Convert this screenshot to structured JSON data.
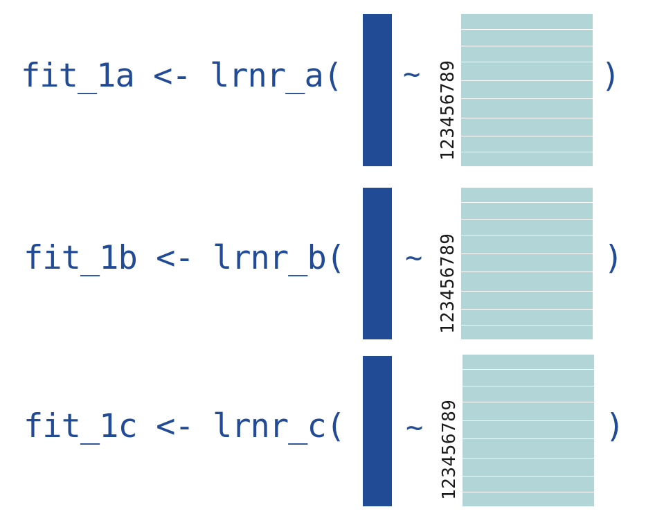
{
  "colors": {
    "code": "#224b96",
    "outcome_bar": "#224b96",
    "features": "#b2d6d7",
    "label": "#1a1a1a"
  },
  "rows": [
    {
      "code": "fit_1a <- lrnr_a(",
      "tilde": "~",
      "feature_labels": "123456789",
      "close_paren": ")"
    },
    {
      "code": "fit_1b <- lrnr_b(",
      "tilde": "~",
      "feature_labels": "123456789",
      "close_paren": ")"
    },
    {
      "code": "fit_1c <- lrnr_c(",
      "tilde": "~",
      "feature_labels": "123456789",
      "close_paren": ")"
    }
  ]
}
